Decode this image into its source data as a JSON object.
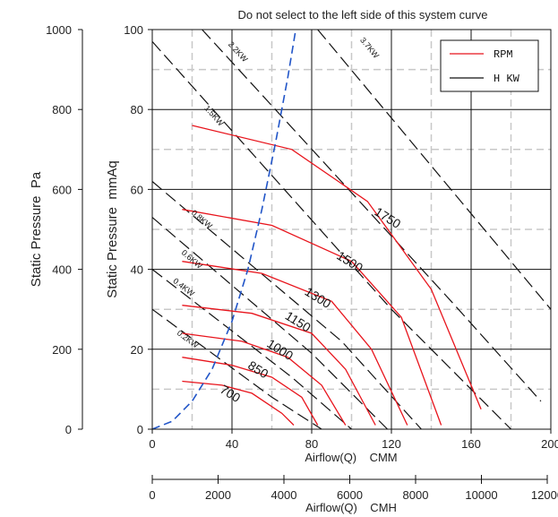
{
  "chart_data": {
    "type": "line",
    "title": "Do not select to the left side of this system curve",
    "xlabel": "Airflow(Q)    CMM",
    "xlabel2": "Airflow(Q)    CMH",
    "ylabel": "Static Pressure  mmAq",
    "ylabel2": "Static Pressure  Pa",
    "xlim": [
      0,
      200
    ],
    "ylim": [
      0,
      100
    ],
    "x_ticks": [
      "0",
      "40",
      "80",
      "120",
      "160",
      "200"
    ],
    "y_ticks": [
      "0",
      "20",
      "40",
      "60",
      "80",
      "100"
    ],
    "x2_ticks": [
      "0",
      "2000",
      "4000",
      "6000",
      "8000",
      "10000",
      "12000"
    ],
    "y2_ticks": [
      "0",
      "200",
      "400",
      "600",
      "800",
      "1000"
    ],
    "legend": {
      "position": "top-right",
      "entries": [
        {
          "name": "RPM",
          "color": "#e8141c"
        },
        {
          "name": "H KW",
          "color": "#111111"
        }
      ]
    },
    "rpm_series": [
      {
        "name": "700",
        "label_at": [
          38,
          8
        ],
        "points": [
          [
            15,
            12
          ],
          [
            35,
            11
          ],
          [
            50,
            9
          ],
          [
            65,
            4
          ],
          [
            71,
            1
          ]
        ]
      },
      {
        "name": "850",
        "label_at": [
          52,
          14
        ],
        "points": [
          [
            15,
            18
          ],
          [
            40,
            16
          ],
          [
            60,
            13
          ],
          [
            75,
            8
          ],
          [
            83,
            1
          ]
        ]
      },
      {
        "name": "1000",
        "label_at": [
          63,
          19
        ],
        "points": [
          [
            15,
            24
          ],
          [
            45,
            22
          ],
          [
            68,
            18
          ],
          [
            85,
            11
          ],
          [
            97,
            1
          ]
        ]
      },
      {
        "name": "1150",
        "label_at": [
          72,
          26
        ],
        "points": [
          [
            15,
            31
          ],
          [
            50,
            29
          ],
          [
            80,
            24
          ],
          [
            97,
            15
          ],
          [
            112,
            1
          ]
        ]
      },
      {
        "name": "1300",
        "label_at": [
          82,
          32
        ],
        "points": [
          [
            15,
            42
          ],
          [
            55,
            39
          ],
          [
            90,
            32
          ],
          [
            110,
            20
          ],
          [
            128,
            1
          ]
        ]
      },
      {
        "name": "1500",
        "label_at": [
          98,
          41
        ],
        "points": [
          [
            15,
            55
          ],
          [
            60,
            51
          ],
          [
            100,
            42
          ],
          [
            125,
            28
          ],
          [
            145,
            1
          ]
        ]
      },
      {
        "name": "1750",
        "label_at": [
          117,
          52
        ],
        "points": [
          [
            20,
            76
          ],
          [
            70,
            70
          ],
          [
            108,
            57
          ],
          [
            140,
            35
          ],
          [
            165,
            5
          ]
        ]
      }
    ],
    "kw_series": [
      {
        "name": "0.2KW",
        "label_at": [
          17,
          22
        ],
        "points": [
          [
            0,
            30
          ],
          [
            60,
            8
          ],
          [
            85,
            0
          ]
        ]
      },
      {
        "name": "0.4KW",
        "label_at": [
          15,
          35
        ],
        "points": [
          [
            0,
            40
          ],
          [
            70,
            13
          ],
          [
            100,
            0
          ]
        ]
      },
      {
        "name": "0.6KW",
        "label_at": [
          19,
          42
        ],
        "points": [
          [
            0,
            53
          ],
          [
            80,
            19
          ],
          [
            118,
            0
          ]
        ]
      },
      {
        "name": "0.8KW",
        "label_at": [
          24,
          52
        ],
        "points": [
          [
            0,
            62
          ],
          [
            95,
            22
          ],
          [
            135,
            0
          ]
        ]
      },
      {
        "name": "1.5KW",
        "label_at": [
          30,
          78
        ],
        "points": [
          [
            0,
            97
          ],
          [
            120,
            30
          ],
          [
            180,
            0
          ]
        ]
      },
      {
        "name": "2.2KW",
        "label_at": [
          42,
          94
        ],
        "points": [
          [
            25,
            100
          ],
          [
            150,
            32
          ],
          [
            195,
            7
          ]
        ]
      },
      {
        "name": "3.7KW",
        "label_at": [
          108,
          95
        ],
        "points": [
          [
            83,
            100
          ],
          [
            200,
            30
          ]
        ]
      }
    ],
    "system_curve": {
      "color": "#2155c8",
      "points": [
        [
          0,
          0
        ],
        [
          10,
          2
        ],
        [
          20,
          7
        ],
        [
          30,
          15
        ],
        [
          40,
          27
        ],
        [
          48,
          40
        ],
        [
          55,
          55
        ],
        [
          62,
          72
        ],
        [
          68,
          88
        ],
        [
          72,
          100
        ]
      ]
    }
  }
}
